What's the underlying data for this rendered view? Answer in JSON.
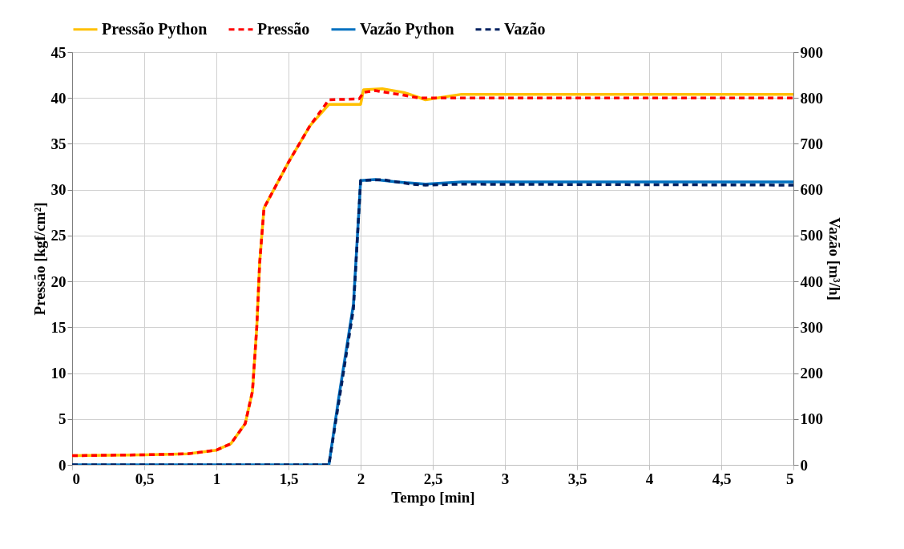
{
  "chart_data": {
    "type": "line",
    "xlabel": "Tempo [min]",
    "ylabel": "Pressão [kgf/cm²]",
    "y2label": "Vazão [m³/h]",
    "xlim": [
      0,
      5
    ],
    "xticks": [
      0,
      {
        "value": 0.5,
        "label": "0,5"
      },
      1,
      {
        "value": 1.5,
        "label": "1,5"
      },
      2,
      {
        "value": 2.5,
        "label": "2,5"
      },
      3,
      {
        "value": 3.5,
        "label": "3,5"
      },
      4,
      {
        "value": 4.5,
        "label": "4,5"
      },
      5
    ],
    "ylim": [
      0,
      45
    ],
    "yticks": [
      0,
      5,
      10,
      15,
      20,
      25,
      30,
      35,
      40,
      45
    ],
    "y2lim": [
      0,
      900
    ],
    "y2ticks": [
      0,
      100,
      200,
      300,
      400,
      500,
      600,
      700,
      800,
      900
    ],
    "grid": true,
    "legend": "top",
    "marker": "none",
    "series": [
      {
        "name": "Pressão Python",
        "color": "#ffc000",
        "line_style": "solid",
        "x": [
          0,
          0.5,
          0.8,
          1.0,
          1.1,
          1.2,
          1.25,
          1.28,
          1.3,
          1.33,
          1.5,
          1.65,
          1.78,
          2.0,
          2.02,
          2.15,
          2.3,
          2.45,
          2.7,
          3.2,
          5
        ],
        "values": [
          1.0,
          1.1,
          1.2,
          1.6,
          2.3,
          4.5,
          8,
          15,
          22,
          28,
          33,
          37,
          39.3,
          39.3,
          40.9,
          41,
          40.6,
          39.8,
          40.4,
          40.4,
          40.4
        ]
      },
      {
        "name": "Pressão",
        "color": "#ff0000",
        "line_style": "dashed",
        "x": [
          0,
          0.5,
          0.8,
          1.0,
          1.1,
          1.2,
          1.25,
          1.28,
          1.3,
          1.33,
          1.5,
          1.65,
          1.78,
          1.99,
          2.02,
          2.1,
          2.3,
          2.4,
          5
        ],
        "values": [
          1.0,
          1.1,
          1.2,
          1.6,
          2.3,
          4.5,
          8,
          15,
          22,
          28,
          33,
          37,
          39.8,
          39.9,
          40.6,
          40.8,
          40.3,
          40,
          40
        ]
      },
      {
        "name": "Vazão Python",
        "color": "#0070c0",
        "line_style": "solid",
        "axis": "y2",
        "x": [
          0,
          1.78,
          1.85,
          1.95,
          2.0,
          2.1,
          2.25,
          2.45,
          2.7,
          5
        ],
        "values": [
          0,
          0,
          150,
          350,
          620,
          622,
          617,
          612,
          617,
          617
        ]
      },
      {
        "name": "Vazão",
        "color": "#002060",
        "line_style": "dashed",
        "axis": "y2",
        "x": [
          0,
          1.78,
          1.85,
          1.95,
          2.0,
          2.15,
          2.35,
          2.45,
          2.7,
          5
        ],
        "values": [
          0,
          0,
          140,
          340,
          620,
          622,
          612,
          610,
          612,
          610
        ]
      }
    ]
  }
}
